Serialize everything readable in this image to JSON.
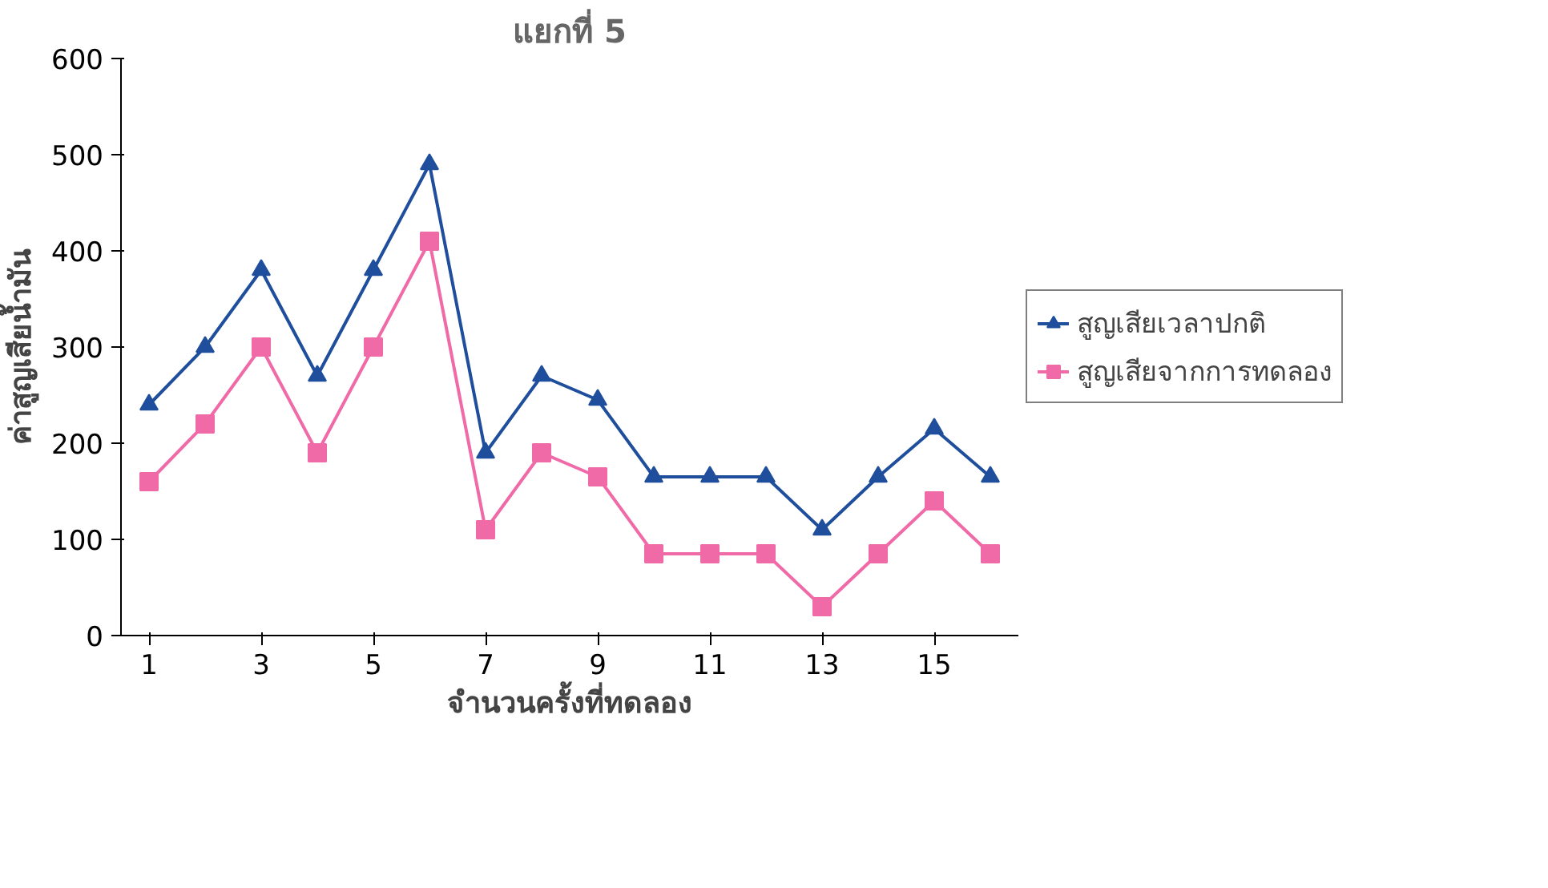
{
  "chart_data": {
    "type": "line",
    "title": "แยกที่ 5",
    "xlabel": "จำนวนครั้งที่ทดลอง",
    "ylabel": "ค่าสูญเสียน้ำมัน",
    "x": [
      1,
      2,
      3,
      4,
      5,
      6,
      7,
      8,
      9,
      10,
      11,
      12,
      13,
      14,
      15,
      16
    ],
    "xlim": [
      0.5,
      16.5
    ],
    "xticks": [
      1,
      3,
      5,
      7,
      9,
      11,
      13,
      15
    ],
    "series": [
      {
        "name": "สูญเสียเวลาปกติ",
        "color": "#1f4e9c",
        "marker": "triangle",
        "values": [
          240,
          300,
          380,
          270,
          380,
          490,
          190,
          270,
          245,
          165,
          165,
          165,
          110,
          165,
          215,
          165
        ]
      },
      {
        "name": "สูญเสียจากการทดลอง",
        "color": "#f06aa8",
        "marker": "square",
        "values": [
          160,
          220,
          300,
          190,
          300,
          410,
          110,
          190,
          165,
          85,
          85,
          85,
          30,
          85,
          140,
          85
        ]
      }
    ],
    "ylim": [
      0,
      600
    ],
    "yticks": [
      0,
      100,
      200,
      300,
      400,
      500,
      600
    ],
    "grid": false,
    "legend": "right",
    "line_style": "solid"
  }
}
